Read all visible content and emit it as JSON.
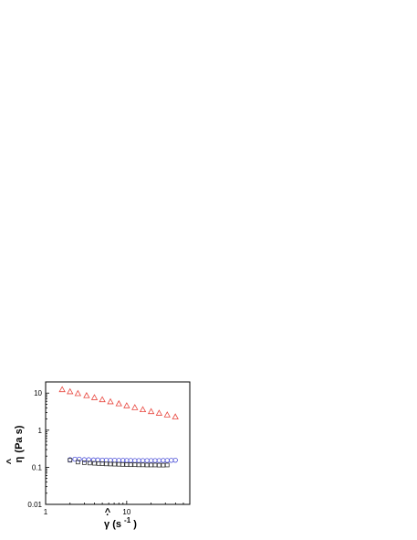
{
  "chart_data": {
    "type": "scatter",
    "x_scale": "log",
    "y_scale": "log",
    "xlim": [
      1,
      60
    ],
    "ylim": [
      0.01,
      20
    ],
    "xlabel": "γ̇ (s⁻¹)",
    "ylabel": "η (Pa s)",
    "x_ticks": [
      {
        "value": 1,
        "label": "1"
      },
      {
        "value": 10,
        "label": "10"
      }
    ],
    "y_ticks": [
      {
        "value": 0.01,
        "label": "0.01"
      },
      {
        "value": 0.1,
        "label": "0.1"
      },
      {
        "value": 1,
        "label": "1"
      },
      {
        "value": 10,
        "label": "10"
      }
    ],
    "grid": false,
    "legend": "none",
    "series": [
      {
        "marker": "triangle",
        "color": "#e8473f",
        "points": [
          [
            1.6,
            12.5
          ],
          [
            2.0,
            11.0
          ],
          [
            2.5,
            9.8
          ],
          [
            3.2,
            8.6
          ],
          [
            4.0,
            7.6
          ],
          [
            5.0,
            6.7
          ],
          [
            6.3,
            5.9
          ],
          [
            8.0,
            5.2
          ],
          [
            10.0,
            4.6
          ],
          [
            12.6,
            4.1
          ],
          [
            15.8,
            3.6
          ],
          [
            20.0,
            3.2
          ],
          [
            25.1,
            2.9
          ],
          [
            31.6,
            2.6
          ],
          [
            39.8,
            2.3
          ]
        ]
      },
      {
        "marker": "circle",
        "color": "#4a4fd8",
        "points": [
          [
            2.0,
            0.16
          ],
          [
            2.3,
            0.165
          ],
          [
            2.6,
            0.165
          ],
          [
            3.0,
            0.16
          ],
          [
            3.4,
            0.16
          ],
          [
            3.9,
            0.158
          ],
          [
            4.4,
            0.158
          ],
          [
            5.0,
            0.156
          ],
          [
            5.6,
            0.156
          ],
          [
            6.3,
            0.155
          ],
          [
            7.1,
            0.155
          ],
          [
            8.0,
            0.154
          ],
          [
            9.0,
            0.154
          ],
          [
            10.0,
            0.153
          ],
          [
            11.2,
            0.153
          ],
          [
            12.6,
            0.152
          ],
          [
            14.1,
            0.152
          ],
          [
            15.8,
            0.152
          ],
          [
            17.8,
            0.152
          ],
          [
            20.0,
            0.152
          ],
          [
            22.4,
            0.152
          ],
          [
            25.1,
            0.152
          ],
          [
            28.2,
            0.153
          ],
          [
            31.6,
            0.153
          ],
          [
            35.5,
            0.154
          ],
          [
            39.8,
            0.155
          ]
        ]
      },
      {
        "marker": "square",
        "color": "#333333",
        "points": [
          [
            2.0,
            0.155
          ],
          [
            2.5,
            0.138
          ],
          [
            3.0,
            0.133
          ],
          [
            3.5,
            0.13
          ],
          [
            4.0,
            0.128
          ],
          [
            4.5,
            0.126
          ],
          [
            5.0,
            0.125
          ],
          [
            5.6,
            0.123
          ],
          [
            6.3,
            0.122
          ],
          [
            7.1,
            0.121
          ],
          [
            8.0,
            0.12
          ],
          [
            8.9,
            0.119
          ],
          [
            10.0,
            0.118
          ],
          [
            11.2,
            0.117
          ],
          [
            12.6,
            0.117
          ],
          [
            14.1,
            0.116
          ],
          [
            15.8,
            0.116
          ],
          [
            17.8,
            0.115
          ],
          [
            20.0,
            0.115
          ],
          [
            22.4,
            0.115
          ],
          [
            25.1,
            0.114
          ],
          [
            28.2,
            0.114
          ],
          [
            31.6,
            0.115
          ]
        ]
      }
    ]
  }
}
